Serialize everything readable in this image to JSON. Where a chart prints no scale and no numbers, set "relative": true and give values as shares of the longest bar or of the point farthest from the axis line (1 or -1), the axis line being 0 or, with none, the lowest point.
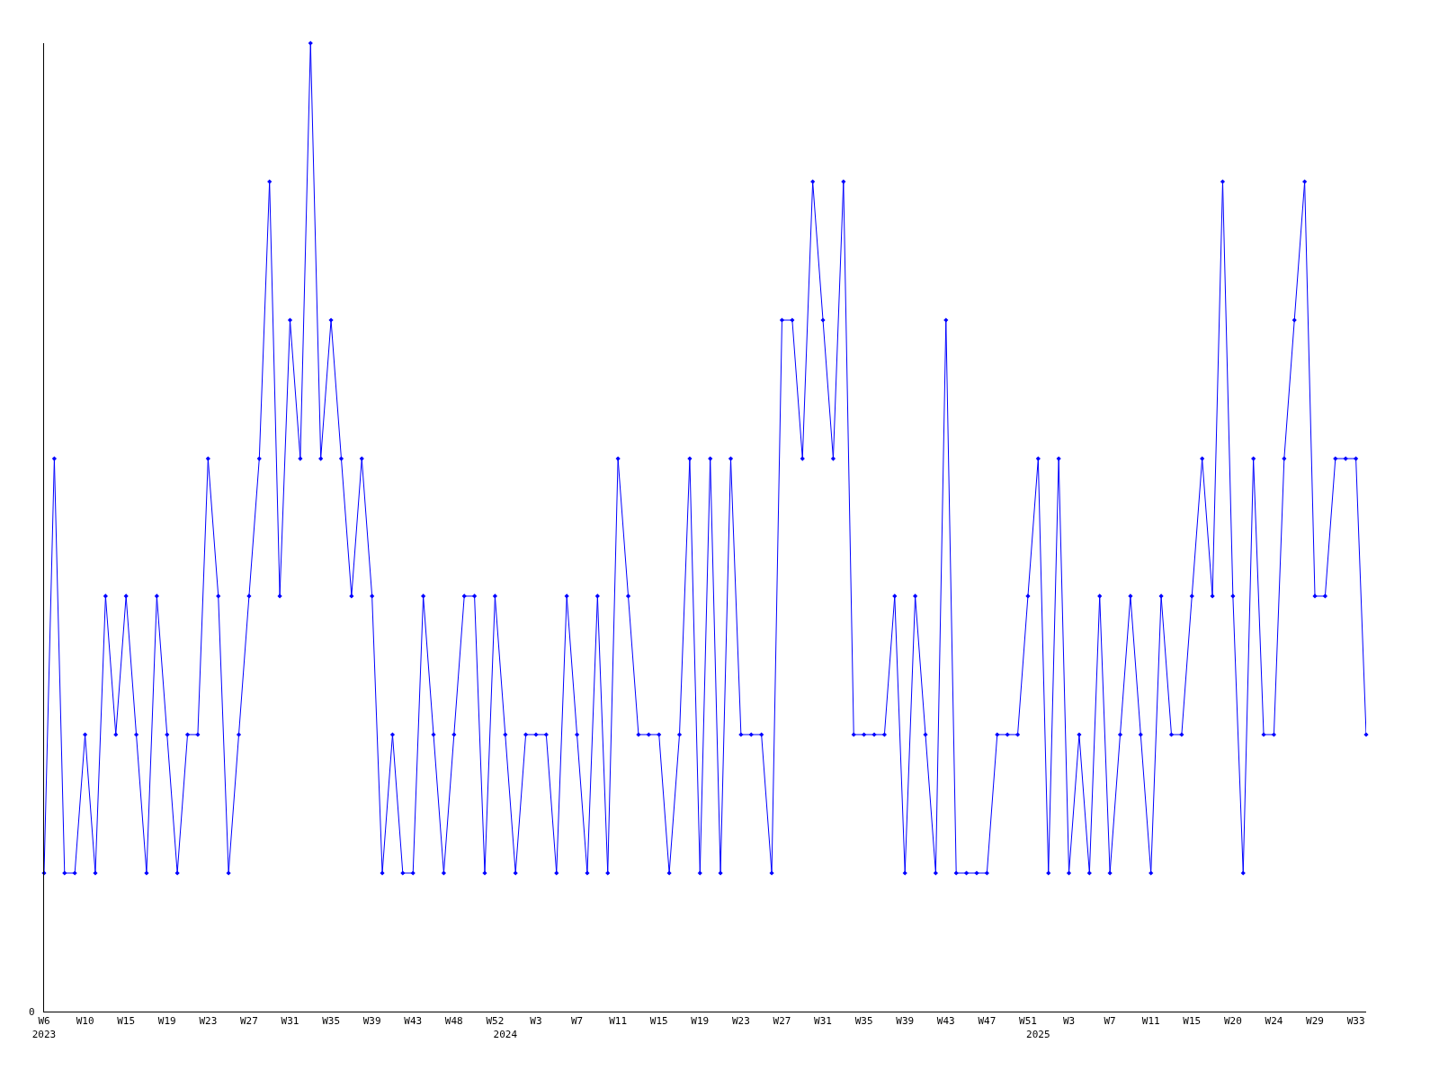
{
  "chart_data": {
    "type": "line",
    "relative": true,
    "annotations": [
      "0"
    ],
    "marker": "diamond",
    "legend": false,
    "categories": [
      "W6\n2023",
      null,
      null,
      null,
      "W10",
      null,
      null,
      null,
      "W15",
      null,
      null,
      null,
      "W19",
      null,
      null,
      null,
      "W23",
      null,
      null,
      null,
      "W27",
      null,
      null,
      null,
      "W31",
      null,
      null,
      null,
      "W35",
      null,
      null,
      null,
      "W39",
      null,
      null,
      null,
      "W43",
      null,
      null,
      null,
      "W48",
      null,
      null,
      null,
      "W52",
      "\n2024",
      null,
      null,
      "W3",
      null,
      null,
      null,
      "W7",
      null,
      null,
      null,
      "W11",
      null,
      null,
      null,
      "W15",
      null,
      null,
      null,
      "W19",
      null,
      null,
      null,
      "W23",
      null,
      null,
      null,
      "W27",
      null,
      null,
      null,
      "W31",
      null,
      null,
      null,
      "W35",
      null,
      null,
      null,
      "W39",
      null,
      null,
      null,
      "W43",
      null,
      null,
      null,
      "W47",
      null,
      null,
      null,
      "W51",
      "\n2025",
      null,
      null,
      "W3",
      null,
      null,
      null,
      "W7",
      null,
      null,
      null,
      "W11",
      null,
      null,
      null,
      "W15",
      null,
      null,
      null,
      "W20",
      null,
      null,
      null,
      "W24",
      null,
      null,
      null,
      "W29",
      null,
      null,
      null,
      "W33",
      null
    ],
    "series": [
      {
        "color": "#0000ff",
        "values": [
          0.143,
          0.571,
          0.143,
          0.143,
          0.286,
          0.143,
          0.429,
          0.286,
          0.429,
          0.286,
          0.143,
          0.429,
          0.286,
          0.143,
          0.286,
          0.286,
          0.571,
          0.429,
          0.143,
          0.286,
          0.429,
          0.571,
          0.857,
          0.429,
          0.714,
          0.571,
          1,
          0.571,
          0.714,
          0.571,
          0.429,
          0.571,
          0.429,
          0.143,
          0.286,
          0.143,
          0.143,
          0.429,
          0.286,
          0.143,
          0.286,
          0.429,
          0.429,
          0.143,
          0.429,
          0.286,
          0.143,
          0.286,
          0.286,
          0.286,
          0.143,
          0.429,
          0.286,
          0.143,
          0.429,
          0.143,
          0.571,
          0.429,
          0.286,
          0.286,
          0.286,
          0.143,
          0.286,
          0.571,
          0.143,
          0.571,
          0.143,
          0.571,
          0.286,
          0.286,
          0.286,
          0.143,
          0.714,
          0.714,
          0.571,
          0.857,
          0.714,
          0.571,
          0.857,
          0.286,
          0.286,
          0.286,
          0.286,
          0.429,
          0.143,
          0.429,
          0.286,
          0.143,
          0.714,
          0.143,
          0.143,
          0.143,
          0.143,
          0.286,
          0.286,
          0.286,
          0.429,
          0.571,
          0.143,
          0.571,
          0.143,
          0.286,
          0.143,
          0.429,
          0.143,
          0.286,
          0.429,
          0.286,
          0.143,
          0.429,
          0.286,
          0.286,
          0.429,
          0.571,
          0.429,
          0.857,
          0.429,
          0.143,
          0.571,
          0.286,
          0.286,
          0.571,
          0.714,
          0.857,
          0.429,
          0.429,
          0.571,
          0.571,
          0.571,
          0.286
        ]
      }
    ]
  }
}
